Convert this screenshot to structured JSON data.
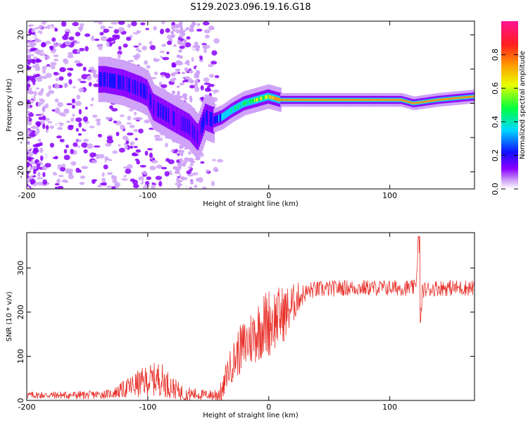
{
  "title": "S129.2023.096.19.16.G18",
  "colors": {
    "snr_line": "#e8302a",
    "axis": "#000000"
  },
  "chart_data": [
    {
      "type": "heatmap",
      "xlabel": "Height of straight line (km)",
      "ylabel": "Frequency (Hz)",
      "xlim": [
        -200,
        170
      ],
      "ylim": [
        -25,
        24
      ],
      "xticks": [
        -200,
        -100,
        0,
        100
      ],
      "yticks": [
        -20,
        -10,
        0,
        10,
        20
      ],
      "colorbar": {
        "label": "Normalized spectral amplitude",
        "range": [
          0,
          1
        ],
        "ticks": [
          "0.0",
          "0.2",
          "0.4",
          "0.6",
          "0.8"
        ],
        "colormap": "rainbow"
      },
      "ridge_frequency_hz": [
        [
          -135,
          7
        ],
        [
          -120,
          6
        ],
        [
          -105,
          4
        ],
        [
          -100,
          3
        ],
        [
          -95,
          -1
        ],
        [
          -85,
          -3
        ],
        [
          -75,
          -5
        ],
        [
          -65,
          -7
        ],
        [
          -58,
          -10
        ],
        [
          -52,
          -4
        ],
        [
          -45,
          -5
        ],
        [
          -38,
          -4
        ],
        [
          -30,
          -2
        ],
        [
          -20,
          0
        ],
        [
          -10,
          1
        ],
        [
          0,
          2
        ],
        [
          10,
          1
        ],
        [
          20,
          1
        ],
        [
          60,
          1
        ],
        [
          90,
          1
        ],
        [
          110,
          1
        ],
        [
          120,
          0
        ],
        [
          140,
          1
        ],
        [
          170,
          2
        ]
      ]
    },
    {
      "type": "line",
      "xlabel": "Height of straight line (km)",
      "ylabel": "SNR (10 * v/v)",
      "xlim": [
        -200,
        170
      ],
      "ylim": [
        0,
        380
      ],
      "xticks": [
        -200,
        -100,
        0,
        100
      ],
      "yticks": [
        0,
        100,
        200,
        300
      ],
      "series_trend": [
        [
          -200,
          12
        ],
        [
          -150,
          12
        ],
        [
          -130,
          15
        ],
        [
          -115,
          30
        ],
        [
          -100,
          45
        ],
        [
          -90,
          50
        ],
        [
          -80,
          30
        ],
        [
          -70,
          15
        ],
        [
          -45,
          12
        ],
        [
          -38,
          20
        ],
        [
          -35,
          60
        ],
        [
          -25,
          110
        ],
        [
          -15,
          140
        ],
        [
          -5,
          170
        ],
        [
          5,
          185
        ],
        [
          15,
          200
        ],
        [
          25,
          235
        ],
        [
          35,
          250
        ],
        [
          60,
          255
        ],
        [
          100,
          255
        ],
        [
          121,
          255
        ],
        [
          124,
          330
        ],
        [
          125,
          160
        ],
        [
          127,
          250
        ],
        [
          140,
          255
        ],
        [
          170,
          255
        ]
      ],
      "noise_amplitude_trend": [
        [
          -200,
          8
        ],
        [
          -130,
          10
        ],
        [
          -110,
          30
        ],
        [
          -90,
          40
        ],
        [
          -75,
          20
        ],
        [
          -50,
          10
        ],
        [
          -38,
          25
        ],
        [
          -25,
          55
        ],
        [
          -10,
          70
        ],
        [
          0,
          80
        ],
        [
          15,
          60
        ],
        [
          30,
          20
        ],
        [
          60,
          18
        ],
        [
          170,
          18
        ]
      ]
    }
  ]
}
